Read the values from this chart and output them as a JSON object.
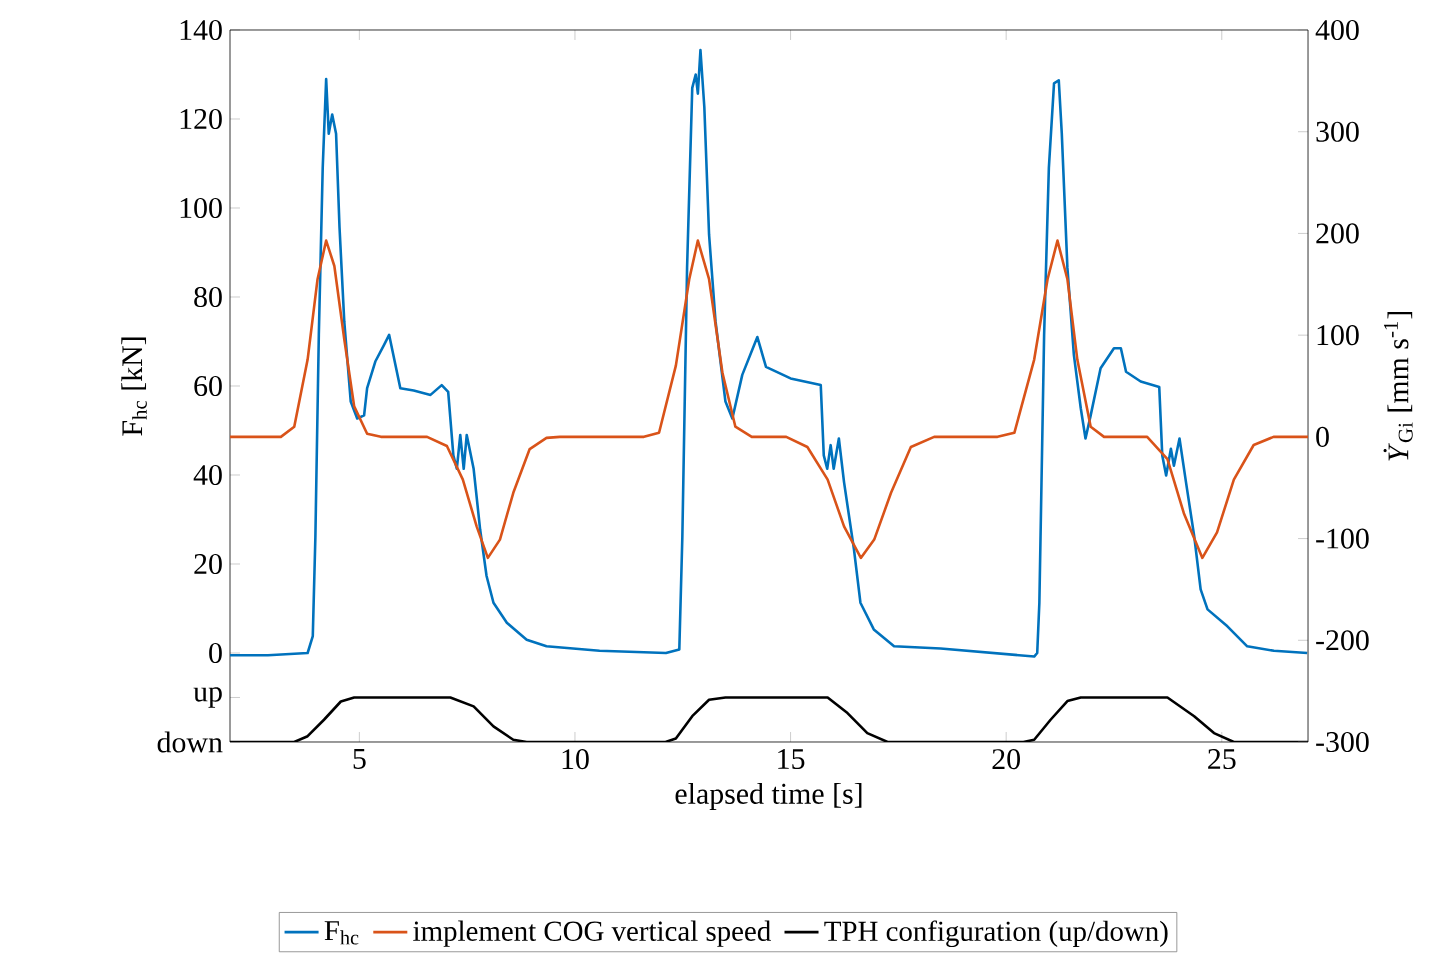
{
  "chart_data": {
    "type": "line",
    "xlabel": "elapsed time [s]",
    "ylabel": "F$_{hc}$ [kN]",
    "y2label": "*Ẏ*$_{Gi}$  [mm s$^{-1}$]",
    "xlim": [
      2,
      27
    ],
    "ylim": [
      -20,
      140
    ],
    "y2lim": [
      -300,
      400
    ],
    "xticks": [
      5,
      10,
      15,
      20,
      25
    ],
    "yticks": [
      {
        "value": -20,
        "label": "down"
      },
      {
        "value": -10,
        "label": "up"
      },
      0,
      20,
      40,
      60,
      80,
      100,
      120,
      140
    ],
    "y2ticks": [
      -300,
      -200,
      -100,
      0,
      100,
      200,
      300,
      400
    ],
    "legend": "bottom",
    "series": [
      {
        "name": "F$_{hc}$",
        "color": "#0072bd",
        "x": [
          2.0,
          2.88,
          3.8,
          3.92,
          3.98,
          4.06,
          4.15,
          4.23,
          4.29,
          4.37,
          4.46,
          4.54,
          4.65,
          4.8,
          4.95,
          5.11,
          5.18,
          5.37,
          5.57,
          5.69,
          5.95,
          6.26,
          6.65,
          6.91,
          7.06,
          7.18,
          7.26,
          7.34,
          7.42,
          7.49,
          7.65,
          7.8,
          7.95,
          8.11,
          8.42,
          8.88,
          9.34,
          10.57,
          12.11,
          12.42,
          12.49,
          12.6,
          12.72,
          12.8,
          12.85,
          12.91,
          13.0,
          13.11,
          13.26,
          13.49,
          13.65,
          13.88,
          14.23,
          14.43,
          15.0,
          15.7,
          15.77,
          15.85,
          15.93,
          16.0,
          16.12,
          16.24,
          16.47,
          16.62,
          16.93,
          17.4,
          18.48,
          20.65,
          20.72,
          20.77,
          20.88,
          20.99,
          21.11,
          21.22,
          21.29,
          21.42,
          21.57,
          21.73,
          21.84,
          21.96,
          22.19,
          22.5,
          22.66,
          22.78,
          23.12,
          23.55,
          23.62,
          23.71,
          23.82,
          23.89,
          24.02,
          24.17,
          24.36,
          24.51,
          24.67,
          25.13,
          25.59,
          26.21,
          26.98
        ],
        "values": [
          -0.5,
          -0.5,
          0,
          3.8,
          26,
          71.5,
          109,
          129,
          116.7,
          121,
          116.7,
          95.6,
          74.5,
          56.5,
          52.7,
          53.4,
          59.5,
          65.5,
          69.2,
          71.5,
          59.5,
          59,
          58,
          60.2,
          58.7,
          44.4,
          41.4,
          49,
          41.4,
          49,
          41.4,
          27.8,
          17.3,
          11.3,
          6.8,
          3,
          1.5,
          0.5,
          0,
          0.8,
          26,
          86.6,
          127,
          130,
          125.7,
          135.5,
          122.7,
          94,
          74.5,
          56.5,
          52.7,
          62.5,
          71,
          64.3,
          61.7,
          60.2,
          44.4,
          41.4,
          46.7,
          41.4,
          48.2,
          38.4,
          23.3,
          11.3,
          5.3,
          1.5,
          1,
          -0.8,
          0,
          11.3,
          71.5,
          109,
          128,
          128.7,
          116.7,
          86.6,
          67,
          55,
          48.2,
          53.4,
          64,
          68.5,
          68.5,
          63.2,
          61,
          59.8,
          44.4,
          39.9,
          45.9,
          42.1,
          48.2,
          38.4,
          26.3,
          14.3,
          9.8,
          6,
          1.5,
          0.5,
          0
        ]
      },
      {
        "name": "implement COG vertical speed",
        "color": "#d95319",
        "axis": "y2",
        "x": [
          2.0,
          3.18,
          3.49,
          3.8,
          4.03,
          4.23,
          4.42,
          4.65,
          4.88,
          5.18,
          5.5,
          6.57,
          7.03,
          7.4,
          7.72,
          7.98,
          8.26,
          8.57,
          8.95,
          9.34,
          9.65,
          11.6,
          11.95,
          12.34,
          12.65,
          12.85,
          13.11,
          13.42,
          13.72,
          14.1,
          14.9,
          15.39,
          15.86,
          16.24,
          16.63,
          16.94,
          17.33,
          17.79,
          18.33,
          19.8,
          20.19,
          20.65,
          20.96,
          21.19,
          21.42,
          21.65,
          21.96,
          22.27,
          23.27,
          23.74,
          24.12,
          24.55,
          24.89,
          25.28,
          25.74,
          26.2,
          27.0
        ],
        "values": [
          0,
          0,
          10,
          76,
          155,
          193,
          168,
          96,
          30,
          3,
          0,
          0,
          -9,
          -42,
          -88,
          -119,
          -101,
          -55,
          -12,
          -1,
          0,
          0,
          4,
          70,
          155,
          193,
          155,
          63,
          10,
          0,
          0,
          -10,
          -42,
          -88,
          -119,
          -101,
          -55,
          -10,
          0,
          0,
          4,
          76,
          155,
          193,
          155,
          76,
          10,
          0,
          0,
          -22,
          -75,
          -119,
          -94,
          -42,
          -8,
          0,
          0
        ]
      },
      {
        "name": "TPH configuration (up/down)",
        "color": "#000000",
        "x": [
          2.0,
          3.49,
          3.8,
          4.18,
          4.57,
          4.88,
          7.11,
          7.65,
          8.11,
          8.57,
          8.88,
          12.1,
          12.34,
          12.72,
          13.11,
          13.49,
          15.86,
          16.32,
          16.78,
          17.25,
          20.4,
          20.65,
          21.03,
          21.42,
          21.73,
          23.74,
          24.36,
          24.82,
          25.28,
          27.0
        ],
        "values": [
          -20,
          -20,
          -18.7,
          -15,
          -10.9,
          -10,
          -10,
          -12,
          -16.5,
          -19.5,
          -20,
          -20,
          -19.2,
          -14.2,
          -10.5,
          -10,
          -10,
          -13.5,
          -18,
          -20,
          -20,
          -19.5,
          -15,
          -10.8,
          -10,
          -10,
          -14.2,
          -18,
          -20,
          -20
        ]
      }
    ]
  }
}
